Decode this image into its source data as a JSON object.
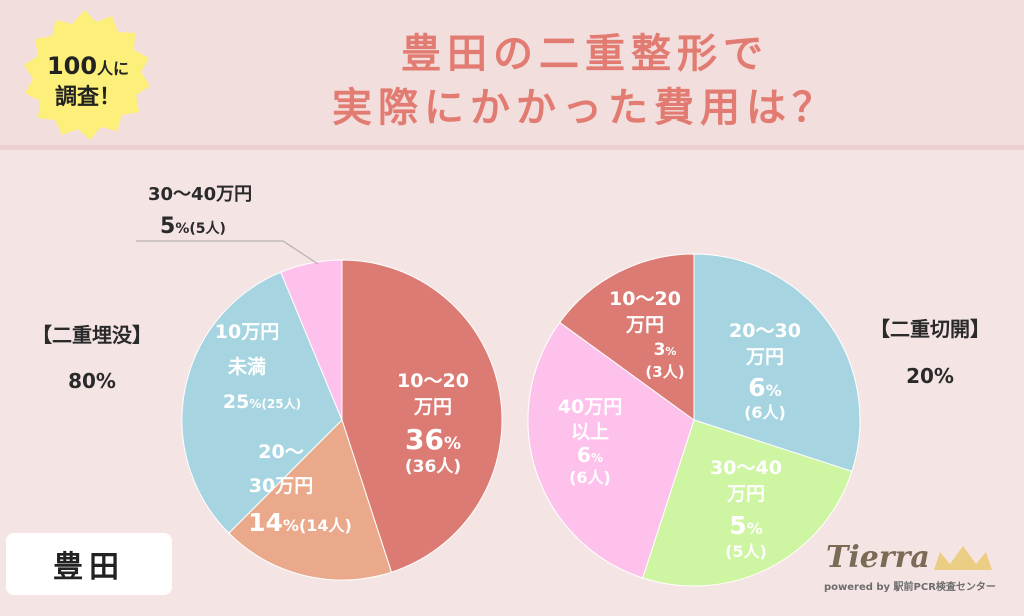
{
  "badge": {
    "line1_num": "100",
    "line1_suffix": "人に",
    "line2": "調査！"
  },
  "title": {
    "line1": "豊田の二重整形で",
    "line2": "実際にかかった費用は？"
  },
  "location_label": "豊田",
  "logo": {
    "name": "Tierra",
    "sub": "powered by 駅前PCR検査センター"
  },
  "colors": {
    "red": "#dc7b73",
    "orange": "#e9a98a",
    "blue": "#a6d5e1",
    "pink": "#fec1ec",
    "green": "#cef5a2",
    "title": "#e27c72"
  },
  "chart_data": [
    {
      "type": "pie",
      "title": "【二重埋没】",
      "subtitle": "80%",
      "slices": [
        {
          "label_lines": [
            "10〜20",
            "万円"
          ],
          "pct_text": "36%",
          "count_text": "(36人)",
          "value": 36,
          "color": "#dc7b73"
        },
        {
          "label_lines": [
            "20〜",
            "30万円"
          ],
          "pct_text": "14%",
          "count_text": "(14人)",
          "value": 14,
          "color": "#e9a98a"
        },
        {
          "label_lines": [
            "10万円",
            "未満"
          ],
          "pct_text": "25%",
          "count_text": "(25人)",
          "value": 25,
          "color": "#a6d5e1"
        },
        {
          "label_lines": [
            "30〜40万円"
          ],
          "pct_text": "5%",
          "count_text": "(5人)",
          "value": 5,
          "color": "#fec1ec"
        }
      ]
    },
    {
      "type": "pie",
      "title": "【二重切開】",
      "subtitle": "20%",
      "slices": [
        {
          "label_lines": [
            "20〜30",
            "万円"
          ],
          "pct_text": "6%",
          "count_text": "(6人)",
          "value": 6,
          "color": "#a6d5e1"
        },
        {
          "label_lines": [
            "30〜40",
            "万円"
          ],
          "pct_text": "5%",
          "count_text": "(5人)",
          "value": 5,
          "color": "#cef5a2"
        },
        {
          "label_lines": [
            "40万円",
            "以上"
          ],
          "pct_text": "6%",
          "count_text": "(6人)",
          "value": 6,
          "color": "#fec1ec"
        },
        {
          "label_lines": [
            "10〜20",
            "万円"
          ],
          "pct_text": "3%",
          "count_text": "(3人)",
          "value": 3,
          "color": "#dc7b73"
        }
      ]
    }
  ]
}
